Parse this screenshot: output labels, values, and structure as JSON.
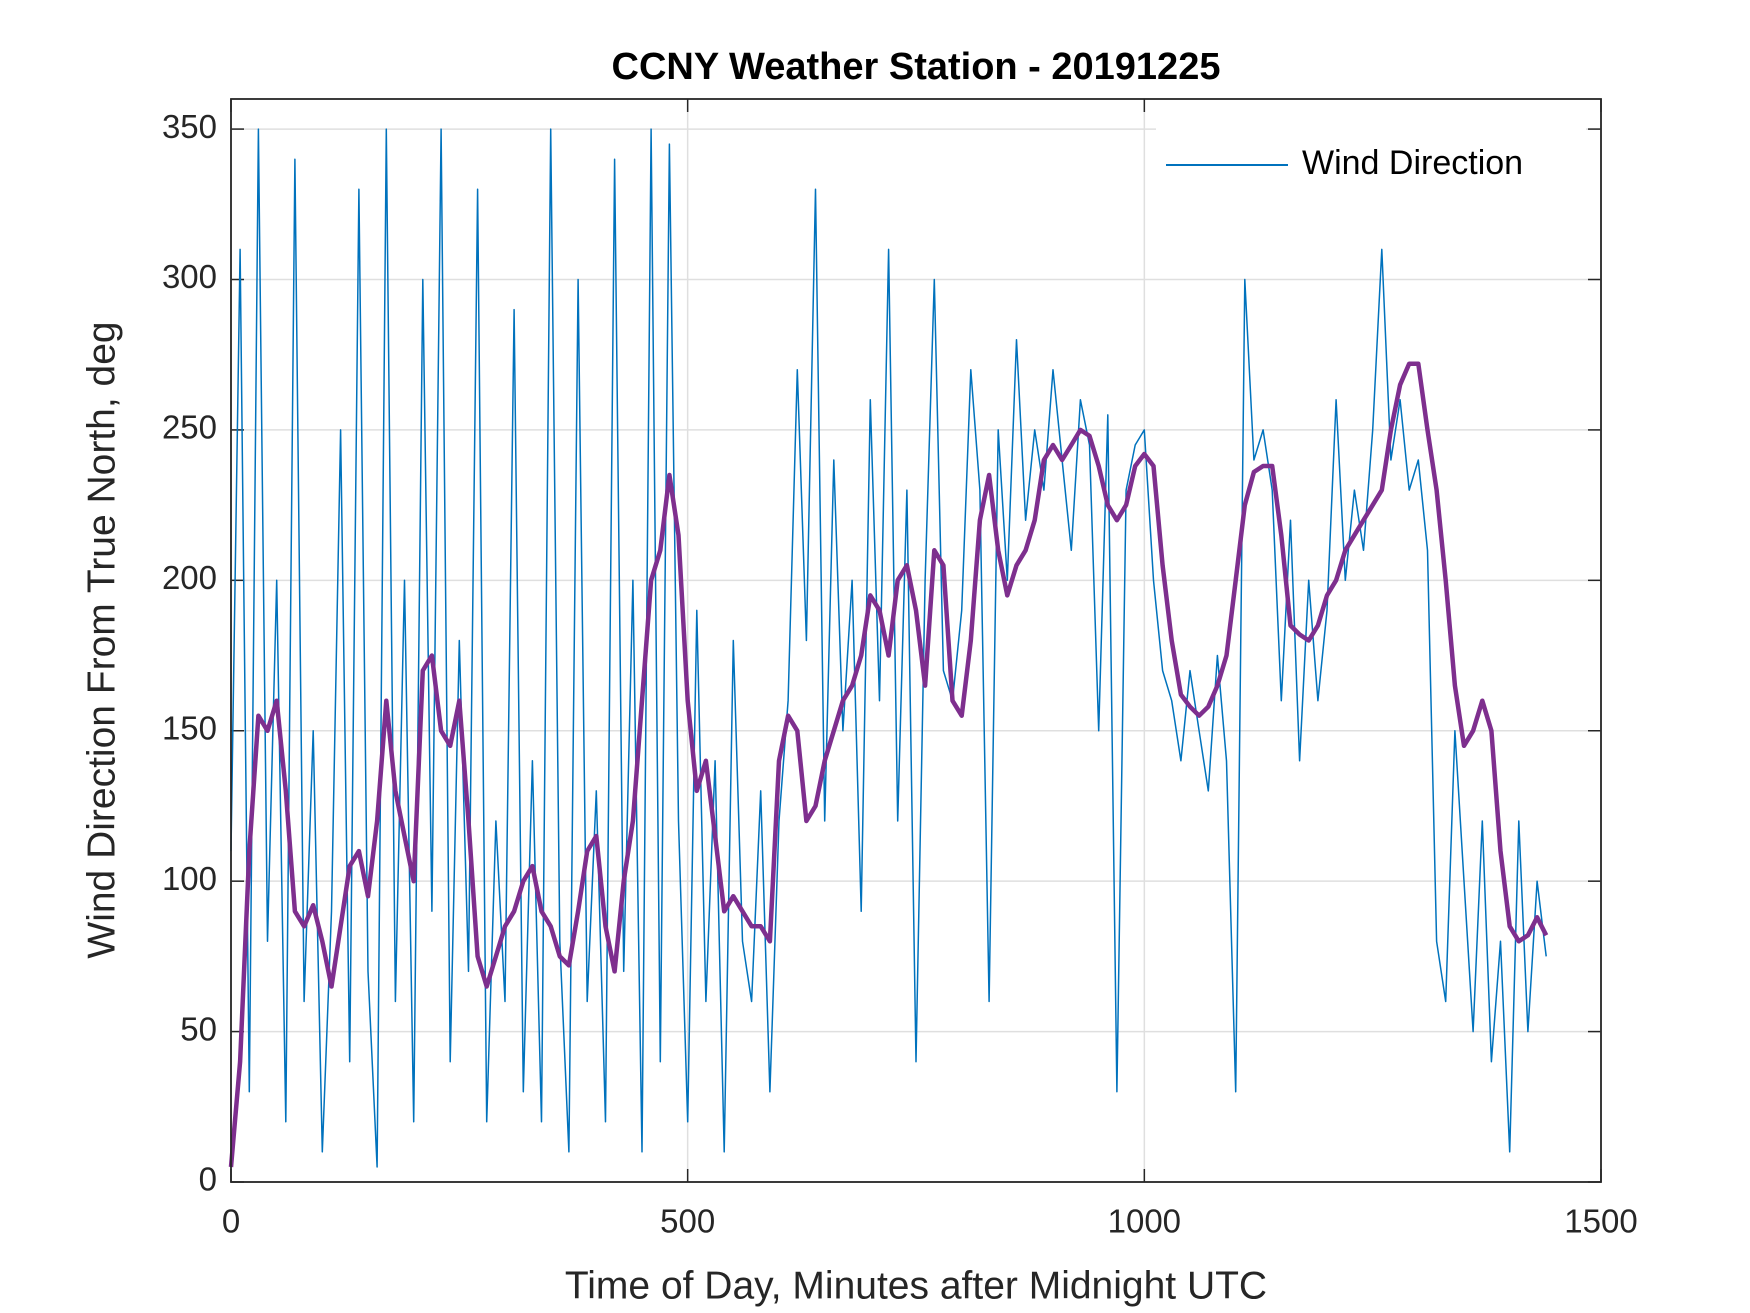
{
  "chart_data": {
    "type": "line",
    "title": "CCNY Weather Station - 20191225",
    "x_label": "Time of Day, Minutes after Midnight UTC",
    "y_label": "Wind Direction From True North, deg",
    "x": [
      0,
      10,
      20,
      30,
      40,
      50,
      60,
      70,
      80,
      90,
      100,
      110,
      120,
      130,
      140,
      150,
      160,
      170,
      180,
      190,
      200,
      210,
      220,
      230,
      240,
      250,
      260,
      270,
      280,
      290,
      300,
      310,
      320,
      330,
      340,
      350,
      360,
      370,
      380,
      390,
      400,
      410,
      420,
      430,
      440,
      450,
      460,
      470,
      480,
      490,
      500,
      510,
      520,
      530,
      540,
      550,
      560,
      570,
      580,
      590,
      600,
      610,
      620,
      630,
      640,
      650,
      660,
      670,
      680,
      690,
      700,
      710,
      720,
      730,
      740,
      750,
      760,
      770,
      780,
      790,
      800,
      810,
      820,
      830,
      840,
      850,
      860,
      870,
      880,
      890,
      900,
      910,
      920,
      930,
      940,
      950,
      960,
      970,
      980,
      990,
      1000,
      1010,
      1020,
      1030,
      1040,
      1050,
      1060,
      1070,
      1080,
      1090,
      1100,
      1110,
      1120,
      1130,
      1140,
      1150,
      1160,
      1170,
      1180,
      1190,
      1200,
      1210,
      1220,
      1230,
      1240,
      1250,
      1260,
      1270,
      1280,
      1290,
      1300,
      1310,
      1320,
      1330,
      1340,
      1350,
      1360,
      1370,
      1380,
      1390,
      1400,
      1410,
      1420,
      1430,
      1440
    ],
    "series": [
      {
        "name": "Wind Direction",
        "color": "#0072bd",
        "width": 1.5,
        "values": [
          110,
          310,
          30,
          350,
          80,
          200,
          20,
          340,
          60,
          150,
          10,
          90,
          250,
          40,
          330,
          70,
          5,
          350,
          60,
          200,
          20,
          300,
          90,
          350,
          40,
          180,
          70,
          330,
          20,
          120,
          60,
          290,
          30,
          140,
          20,
          350,
          80,
          10,
          300,
          60,
          130,
          20,
          340,
          70,
          200,
          10,
          350,
          40,
          345,
          120,
          20,
          190,
          60,
          140,
          10,
          180,
          80,
          60,
          130,
          30,
          120,
          160,
          270,
          180,
          330,
          120,
          240,
          150,
          200,
          90,
          260,
          160,
          310,
          120,
          230,
          40,
          200,
          300,
          170,
          160,
          190,
          270,
          230,
          60,
          250,
          200,
          280,
          220,
          250,
          230,
          270,
          240,
          210,
          260,
          245,
          150,
          255,
          30,
          230,
          245,
          250,
          200,
          170,
          160,
          140,
          170,
          150,
          130,
          175,
          140,
          30,
          300,
          240,
          250,
          230,
          160,
          220,
          140,
          200,
          160,
          190,
          260,
          200,
          230,
          210,
          250,
          310,
          240,
          260,
          230,
          240,
          210,
          80,
          60,
          150,
          100,
          50,
          120,
          40,
          80,
          10,
          120,
          50,
          100,
          75
        ]
      },
      {
        "color": "#7e2f8e",
        "width": 4.5,
        "values": [
          5,
          40,
          110,
          155,
          150,
          160,
          130,
          90,
          85,
          92,
          80,
          65,
          85,
          105,
          110,
          95,
          120,
          160,
          130,
          115,
          100,
          170,
          175,
          150,
          145,
          160,
          120,
          75,
          65,
          75,
          85,
          90,
          100,
          105,
          90,
          85,
          75,
          72,
          90,
          110,
          115,
          85,
          70,
          100,
          120,
          160,
          200,
          210,
          235,
          215,
          160,
          130,
          140,
          115,
          90,
          95,
          90,
          85,
          85,
          80,
          140,
          155,
          150,
          120,
          125,
          140,
          150,
          160,
          165,
          175,
          195,
          190,
          175,
          200,
          205,
          190,
          165,
          210,
          205,
          160,
          155,
          180,
          220,
          235,
          210,
          195,
          205,
          210,
          220,
          240,
          245,
          240,
          245,
          250,
          248,
          238,
          225,
          220,
          225,
          238,
          242,
          238,
          205,
          180,
          162,
          158,
          155,
          158,
          165,
          175,
          200,
          225,
          236,
          238,
          238,
          215,
          185,
          182,
          180,
          185,
          195,
          200,
          210,
          215,
          220,
          225,
          230,
          250,
          265,
          272,
          272,
          250,
          230,
          200,
          165,
          145,
          150,
          160,
          150,
          110,
          85,
          80,
          82,
          88,
          82
        ]
      }
    ],
    "xlim": [
      0,
      1500
    ],
    "xticks": [
      0,
      500,
      1000,
      1500
    ],
    "ylim": [
      0,
      360
    ],
    "yticks": [
      0,
      50,
      100,
      150,
      200,
      250,
      300,
      350
    ],
    "grid": true,
    "legend": "upper right"
  }
}
